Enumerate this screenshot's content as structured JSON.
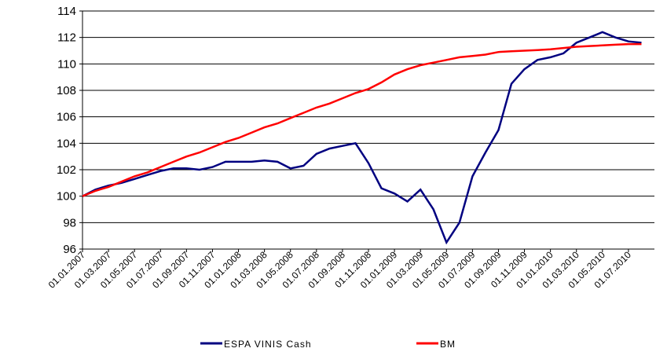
{
  "chart_data": {
    "type": "line",
    "x": [
      "01.01.2007",
      "01.02.2007",
      "01.03.2007",
      "01.04.2007",
      "01.05.2007",
      "01.06.2007",
      "01.07.2007",
      "01.08.2007",
      "01.09.2007",
      "01.10.2007",
      "01.11.2007",
      "01.12.2007",
      "01.01.2008",
      "01.02.2008",
      "01.03.2008",
      "01.04.2008",
      "01.05.2008",
      "01.06.2008",
      "01.07.2008",
      "01.08.2008",
      "01.09.2008",
      "01.10.2008",
      "01.11.2008",
      "01.12.2008",
      "01.01.2009",
      "01.02.2009",
      "01.03.2009",
      "01.04.2009",
      "01.05.2009",
      "01.06.2009",
      "01.07.2009",
      "01.08.2009",
      "01.09.2009",
      "01.10.2009",
      "01.11.2009",
      "01.12.2009",
      "01.01.2010",
      "01.02.2010",
      "01.03.2010",
      "01.04.2010",
      "01.05.2010",
      "01.06.2010",
      "01.07.2010",
      "01.08.2010"
    ],
    "xticks": [
      "01.01.2007",
      "01.03.2007",
      "01.05.2007",
      "01.07.2007",
      "01.09.2007",
      "01.11.2007",
      "01.01.2008",
      "01.03.2008",
      "01.05.2008",
      "01.07.2008",
      "01.09.2008",
      "01.11.2008",
      "01.01.2009",
      "01.03.2009",
      "01.05.2009",
      "01.07.2009",
      "01.09.2009",
      "01.11.2009",
      "01.01.2010",
      "01.03.2010",
      "01.05.2010",
      "01.07.2010"
    ],
    "series": [
      {
        "name": "ESPA VINIS Cash",
        "color": "#000080",
        "values": [
          100.0,
          100.5,
          100.8,
          101.0,
          101.3,
          101.6,
          101.9,
          102.1,
          102.1,
          102.0,
          102.2,
          102.6,
          102.6,
          102.6,
          102.7,
          102.6,
          102.1,
          102.3,
          103.2,
          103.6,
          103.8,
          104.0,
          102.5,
          100.6,
          100.2,
          99.6,
          100.5,
          99.0,
          96.5,
          98.0,
          101.5,
          103.3,
          105.0,
          108.5,
          109.6,
          110.3,
          110.5,
          110.8,
          111.6,
          112.0,
          112.4,
          112.0,
          111.7,
          111.6
        ]
      },
      {
        "name": "BM",
        "color": "#ff0000",
        "values": [
          100.0,
          100.4,
          100.7,
          101.1,
          101.5,
          101.8,
          102.2,
          102.6,
          103.0,
          103.3,
          103.7,
          104.1,
          104.4,
          104.8,
          105.2,
          105.5,
          105.9,
          106.3,
          106.7,
          107.0,
          107.4,
          107.8,
          108.1,
          108.6,
          109.2,
          109.6,
          109.9,
          110.1,
          110.3,
          110.5,
          110.6,
          110.7,
          110.9,
          110.95,
          111.0,
          111.05,
          111.1,
          111.2,
          111.3,
          111.35,
          111.4,
          111.45,
          111.5,
          111.5
        ]
      }
    ],
    "ylim": [
      96,
      114
    ],
    "yticks": [
      96,
      98,
      100,
      102,
      104,
      106,
      108,
      110,
      112,
      114
    ],
    "grid": true
  }
}
